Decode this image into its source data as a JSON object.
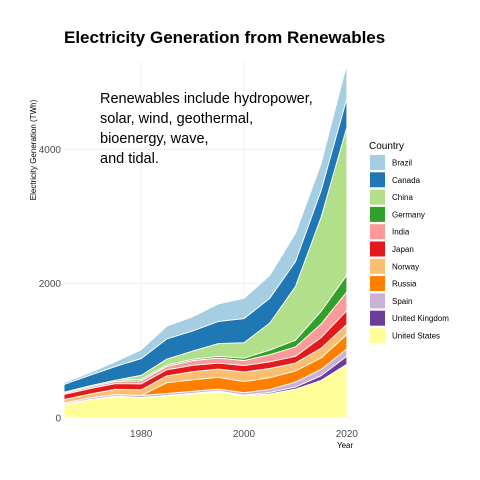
{
  "chart_data": {
    "type": "area",
    "stacked": true,
    "title": "Electricity Generation from Renewables",
    "xlabel": "Year",
    "ylabel": "Electricity Generation (TWh)",
    "xlim": [
      1965,
      2021
    ],
    "ylim": [
      0,
      5300
    ],
    "x_ticks": [
      1980,
      2000,
      2020
    ],
    "y_ticks": [
      0,
      2000,
      4000
    ],
    "grid": true,
    "legend_title": "Country",
    "legend_position": "right",
    "annotation": [
      "Renewables include hydropower,",
      "solar, wind, geothermal,",
      "bioenergy, wave,",
      "and tidal."
    ],
    "x": [
      1965,
      1970,
      1975,
      1980,
      1985,
      1990,
      1995,
      2000,
      2005,
      2010,
      2015,
      2020
    ],
    "series": [
      {
        "name": "United States",
        "color": "#FFFF99",
        "values": [
          200,
          270,
          320,
          300,
          330,
          360,
          390,
          330,
          360,
          430,
          560,
          800
        ]
      },
      {
        "name": "United Kingdom",
        "color": "#6A3D9A",
        "values": [
          5,
          5,
          5,
          5,
          5,
          8,
          10,
          12,
          20,
          30,
          70,
          120
        ]
      },
      {
        "name": "Spain",
        "color": "#CAB2D6",
        "values": [
          20,
          25,
          25,
          30,
          30,
          30,
          30,
          35,
          45,
          75,
          95,
          110
        ]
      },
      {
        "name": "Russia",
        "color": "#FF7F00",
        "values": [
          0,
          0,
          0,
          0,
          160,
          170,
          175,
          165,
          175,
          165,
          170,
          215
        ]
      },
      {
        "name": "Norway",
        "color": "#FDBF6F",
        "values": [
          50,
          57,
          77,
          84,
          103,
          121,
          123,
          143,
          137,
          118,
          145,
          150
        ]
      },
      {
        "name": "Japan",
        "color": "#E31A1C",
        "values": [
          75,
          80,
          85,
          90,
          90,
          95,
          90,
          95,
          100,
          100,
          160,
          205
        ]
      },
      {
        "name": "India",
        "color": "#FB9A99",
        "values": [
          20,
          25,
          33,
          46,
          50,
          72,
          75,
          76,
          105,
          140,
          200,
          280
        ]
      },
      {
        "name": "Germany",
        "color": "#33A02C",
        "values": [
          15,
          18,
          18,
          20,
          20,
          20,
          25,
          35,
          70,
          100,
          190,
          250
        ]
      },
      {
        "name": "China",
        "color": "#B2DF8A",
        "values": [
          0,
          0,
          0,
          60,
          90,
          120,
          190,
          230,
          400,
          800,
          1400,
          2200
        ]
      },
      {
        "name": "Canada",
        "color": "#1F78B4",
        "values": [
          115,
          155,
          205,
          250,
          300,
          300,
          330,
          360,
          370,
          370,
          400,
          430
        ]
      },
      {
        "name": "Brazil",
        "color": "#A6CEE3",
        "values": [
          25,
          40,
          70,
          130,
          190,
          210,
          260,
          300,
          340,
          420,
          400,
          510
        ]
      }
    ]
  }
}
